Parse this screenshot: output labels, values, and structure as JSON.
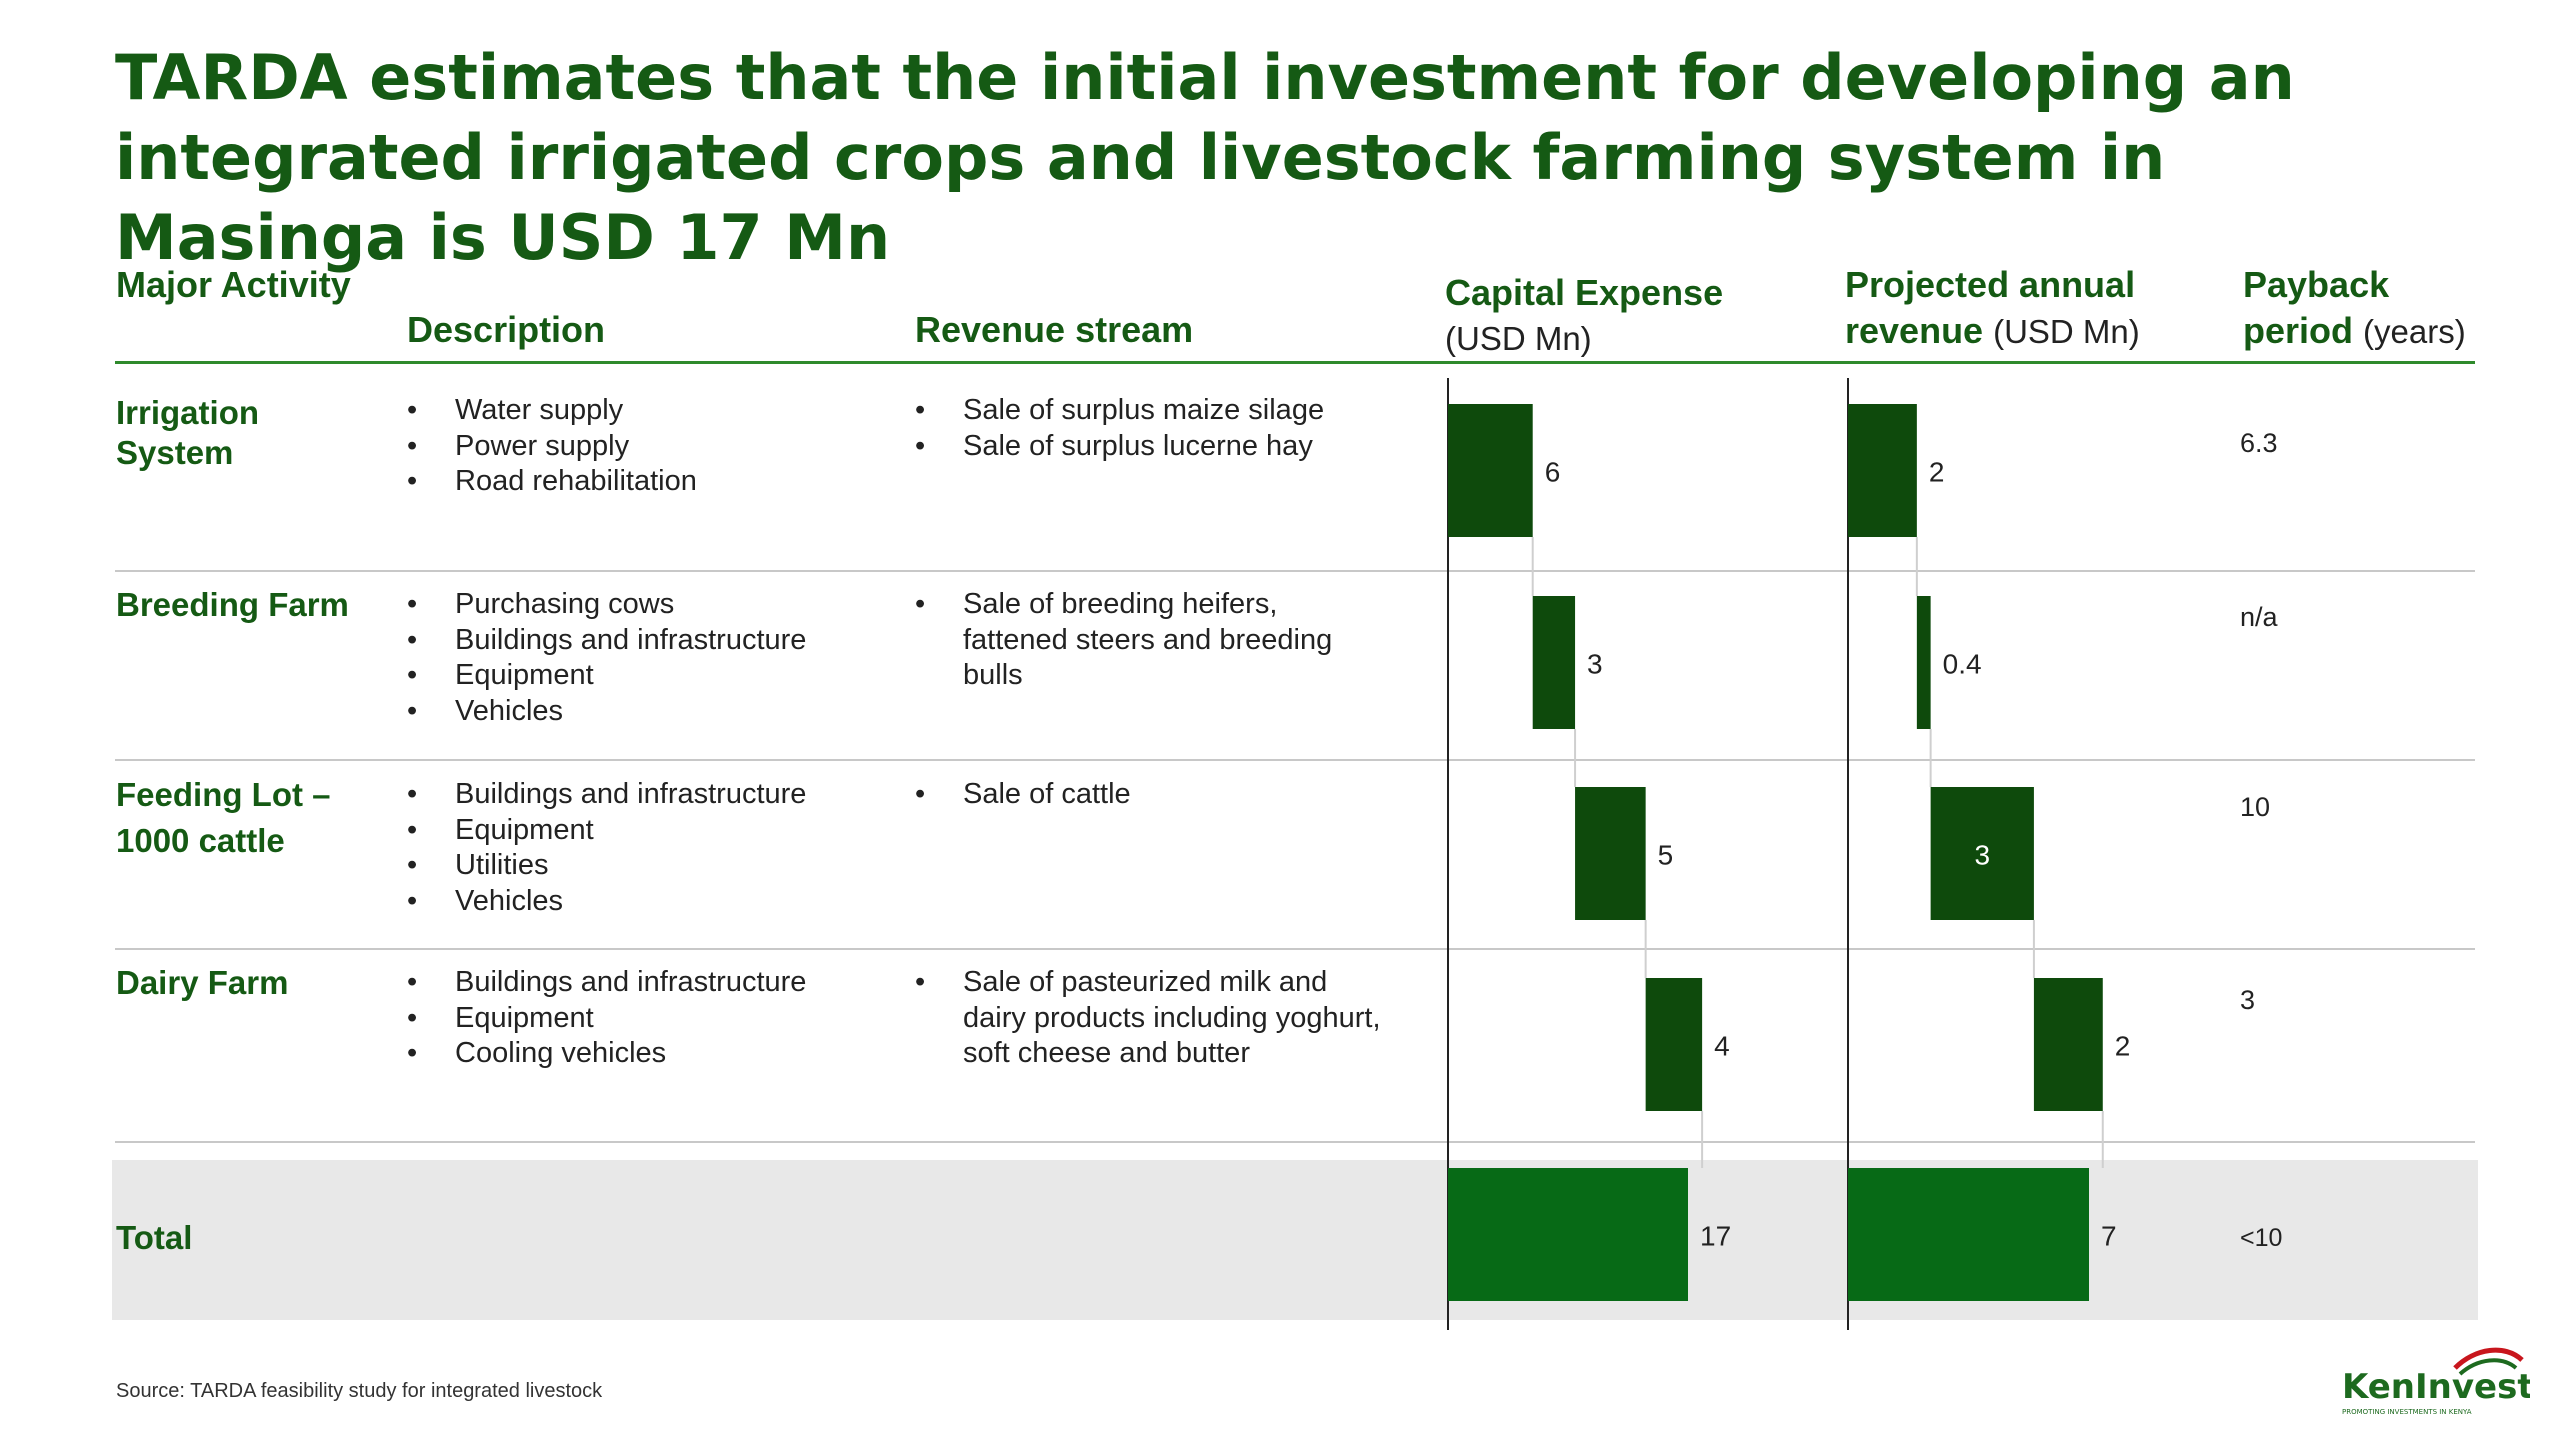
{
  "title": "TARDA estimates that the initial investment for developing an integrated irrigated crops and livestock farming system in Masinga is USD 17 Mn",
  "headers": {
    "activity": "Major Activity",
    "description": "Description",
    "revenue_stream": "Revenue stream",
    "capex": "Capital Expense",
    "capex_unit": "(USD Mn)",
    "revenue": "Projected annual revenue",
    "revenue_unit": "(USD Mn)",
    "payback": "Payback period",
    "payback_unit": "(years)"
  },
  "rows": [
    {
      "activity": "Irrigation System",
      "description": [
        "Water supply",
        "Power supply",
        "Road rehabilitation"
      ],
      "revenue_stream": [
        "Sale of surplus maize silage",
        "Sale of surplus lucerne hay"
      ],
      "payback": "6.3"
    },
    {
      "activity": "Breeding Farm",
      "description": [
        "Purchasing cows",
        "Buildings and infrastructure",
        "Equipment",
        "Vehicles"
      ],
      "revenue_stream": [
        "Sale of breeding heifers, fattened steers and breeding bulls"
      ],
      "payback": "n/a"
    },
    {
      "activity": "Feeding Lot – 1000 cattle",
      "description": [
        "Buildings and infrastructure",
        "Equipment",
        "Utilities",
        "Vehicles"
      ],
      "revenue_stream": [
        "Sale of cattle"
      ],
      "payback": "10"
    },
    {
      "activity": "Dairy Farm",
      "description": [
        "Buildings and infrastructure",
        "Equipment",
        "Cooling vehicles"
      ],
      "revenue_stream": [
        "Sale of pasteurized milk and dairy products including yoghurt, soft cheese and butter"
      ],
      "payback": "3"
    }
  ],
  "total": {
    "label": "Total",
    "payback": "<10"
  },
  "chart_data": [
    {
      "type": "bar",
      "title": "Capital Expense",
      "ylabel": "(USD Mn)",
      "categories": [
        "Irrigation System",
        "Breeding Farm",
        "Feeding Lot – 1000 cattle",
        "Dairy Farm",
        "Total"
      ],
      "values": [
        6,
        3,
        5,
        4,
        17
      ],
      "labels": [
        "6",
        "3",
        "5",
        "4",
        "17"
      ],
      "waterfall": true
    },
    {
      "type": "bar",
      "title": "Projected annual revenue",
      "ylabel": "(USD Mn)",
      "categories": [
        "Irrigation System",
        "Breeding Farm",
        "Feeding Lot – 1000 cattle",
        "Dairy Farm",
        "Total"
      ],
      "values": [
        2,
        0.4,
        3,
        2,
        7
      ],
      "labels": [
        "2",
        "0.4",
        "3",
        "2",
        "7"
      ],
      "waterfall": true
    }
  ],
  "colors": {
    "bar_dark": "#0e4a0c",
    "bar_total": "#076a16",
    "title": "#155a14"
  },
  "source": "Source: TARDA feasibility study for integrated livestock",
  "logo": {
    "name": "KenInvest",
    "tagline": "PROMOTING INVESTMENTS IN KENYA"
  }
}
